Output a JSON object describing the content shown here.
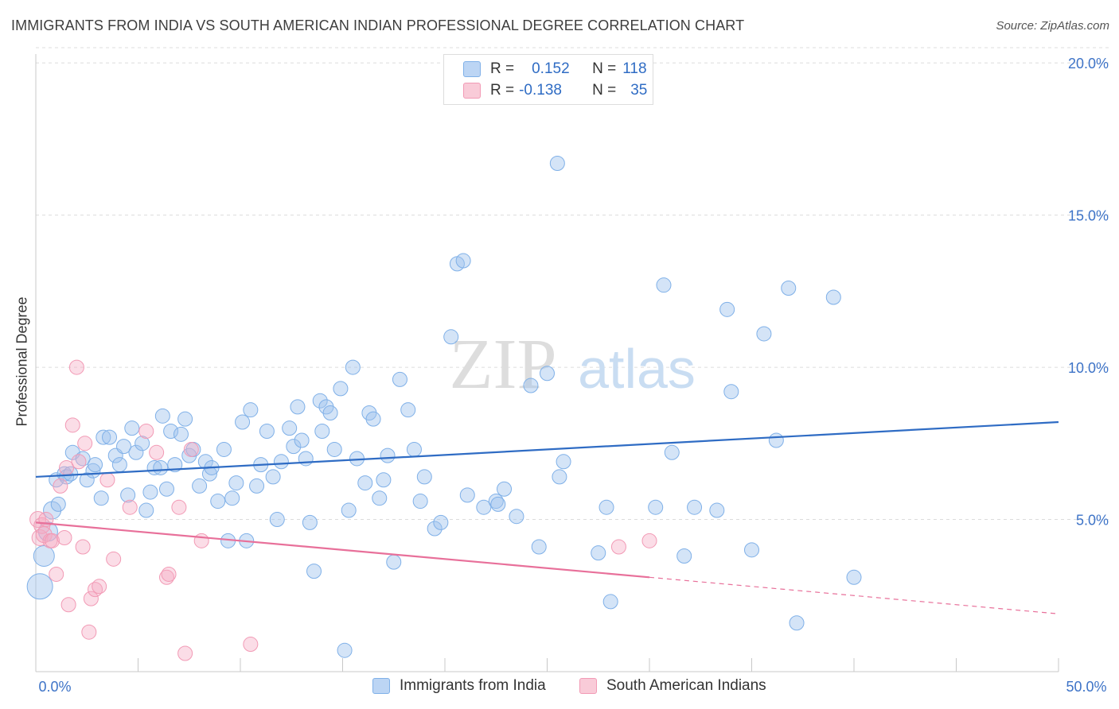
{
  "title": "IMMIGRANTS FROM INDIA VS SOUTH AMERICAN INDIAN PROFESSIONAL DEGREE CORRELATION CHART",
  "source": "Source: ZipAtlas.com",
  "watermark": {
    "zip": "ZIP",
    "atlas": "atlas"
  },
  "legend": {
    "rows": [
      {
        "r_label": "R =",
        "r_value": "0.152",
        "n_label": "N =",
        "n_value": "118",
        "color": "#a9c8f0"
      },
      {
        "r_label": "R =",
        "r_value": "-0.138",
        "n_label": "N =",
        "n_value": "35",
        "color": "#f7b6c8"
      }
    ]
  },
  "bottom_legend": [
    "Immigrants from India",
    "South American Indians"
  ],
  "chart_data": {
    "type": "scatter",
    "xlabel": "",
    "ylabel": "Professional Degree",
    "xlim": [
      0,
      50
    ],
    "ylim": [
      0,
      20.5
    ],
    "x_tick_labels": [
      {
        "x": 0,
        "label": "0.0%"
      },
      {
        "x": 50,
        "label": "50.0%"
      }
    ],
    "y_tick_labels": [
      {
        "y": 5,
        "label": "5.0%"
      },
      {
        "y": 10,
        "label": "10.0%"
      },
      {
        "y": 15,
        "label": "15.0%"
      },
      {
        "y": 20,
        "label": "20.0%"
      }
    ],
    "grid": true,
    "legend_position": "top-center",
    "series": [
      {
        "name": "Immigrants from India",
        "color": "#7fb0e8",
        "line_color": "#2f6cc4",
        "trend": {
          "x": [
            0,
            50
          ],
          "y": [
            6.4,
            8.2
          ]
        },
        "points": [
          [
            0.2,
            2.8
          ],
          [
            0.4,
            3.8
          ],
          [
            0.6,
            4.6
          ],
          [
            0.8,
            5.3
          ],
          [
            1.0,
            6.3
          ],
          [
            1.1,
            5.5
          ],
          [
            1.4,
            6.5
          ],
          [
            1.5,
            6.4
          ],
          [
            1.7,
            6.5
          ],
          [
            1.8,
            7.2
          ],
          [
            2.3,
            7.0
          ],
          [
            2.5,
            6.3
          ],
          [
            2.8,
            6.6
          ],
          [
            2.9,
            6.8
          ],
          [
            3.2,
            5.7
          ],
          [
            3.3,
            7.7
          ],
          [
            3.6,
            7.7
          ],
          [
            3.9,
            7.1
          ],
          [
            4.1,
            6.8
          ],
          [
            4.3,
            7.4
          ],
          [
            4.5,
            5.8
          ],
          [
            4.7,
            8.0
          ],
          [
            4.9,
            7.2
          ],
          [
            5.2,
            7.5
          ],
          [
            5.4,
            5.3
          ],
          [
            5.6,
            5.9
          ],
          [
            5.8,
            6.7
          ],
          [
            6.1,
            6.7
          ],
          [
            6.2,
            8.4
          ],
          [
            6.4,
            6.0
          ],
          [
            6.6,
            7.9
          ],
          [
            6.8,
            6.8
          ],
          [
            7.1,
            7.8
          ],
          [
            7.3,
            8.3
          ],
          [
            7.5,
            7.1
          ],
          [
            7.7,
            7.3
          ],
          [
            8.0,
            6.1
          ],
          [
            8.3,
            6.9
          ],
          [
            8.5,
            6.5
          ],
          [
            8.6,
            6.7
          ],
          [
            8.9,
            5.6
          ],
          [
            9.2,
            7.3
          ],
          [
            9.4,
            4.3
          ],
          [
            9.6,
            5.7
          ],
          [
            9.8,
            6.2
          ],
          [
            10.1,
            8.2
          ],
          [
            10.3,
            4.3
          ],
          [
            10.5,
            8.6
          ],
          [
            10.8,
            6.1
          ],
          [
            11.0,
            6.8
          ],
          [
            11.3,
            7.9
          ],
          [
            11.6,
            6.4
          ],
          [
            11.8,
            5.0
          ],
          [
            12.0,
            6.9
          ],
          [
            12.4,
            8.0
          ],
          [
            12.6,
            7.4
          ],
          [
            12.8,
            8.7
          ],
          [
            13.0,
            7.6
          ],
          [
            13.2,
            7.0
          ],
          [
            13.4,
            4.9
          ],
          [
            13.6,
            3.3
          ],
          [
            13.9,
            8.9
          ],
          [
            14.0,
            7.9
          ],
          [
            14.2,
            8.7
          ],
          [
            14.4,
            8.5
          ],
          [
            14.6,
            7.3
          ],
          [
            14.9,
            9.3
          ],
          [
            15.1,
            0.7
          ],
          [
            15.3,
            5.3
          ],
          [
            15.5,
            10.0
          ],
          [
            15.7,
            7.0
          ],
          [
            16.1,
            6.2
          ],
          [
            16.3,
            8.5
          ],
          [
            16.5,
            8.3
          ],
          [
            16.8,
            5.7
          ],
          [
            17.0,
            6.3
          ],
          [
            17.2,
            7.1
          ],
          [
            17.5,
            3.6
          ],
          [
            17.8,
            9.6
          ],
          [
            18.2,
            8.6
          ],
          [
            18.5,
            7.3
          ],
          [
            18.8,
            5.6
          ],
          [
            19.0,
            6.4
          ],
          [
            19.5,
            4.7
          ],
          [
            19.8,
            4.9
          ],
          [
            20.3,
            11.0
          ],
          [
            20.6,
            13.4
          ],
          [
            20.9,
            13.5
          ],
          [
            21.1,
            5.8
          ],
          [
            21.9,
            5.4
          ],
          [
            22.5,
            5.6
          ],
          [
            22.6,
            5.5
          ],
          [
            22.9,
            6.0
          ],
          [
            23.5,
            5.1
          ],
          [
            24.2,
            9.4
          ],
          [
            24.6,
            4.1
          ],
          [
            25.0,
            9.8
          ],
          [
            25.5,
            16.7
          ],
          [
            25.6,
            6.4
          ],
          [
            25.8,
            6.9
          ],
          [
            27.5,
            3.9
          ],
          [
            27.9,
            5.4
          ],
          [
            28.1,
            2.3
          ],
          [
            30.3,
            5.4
          ],
          [
            30.7,
            12.7
          ],
          [
            31.1,
            7.2
          ],
          [
            31.7,
            3.8
          ],
          [
            32.2,
            5.4
          ],
          [
            33.3,
            5.3
          ],
          [
            33.8,
            11.9
          ],
          [
            34.0,
            9.2
          ],
          [
            35.0,
            4.0
          ],
          [
            35.6,
            11.1
          ],
          [
            36.2,
            7.6
          ],
          [
            36.8,
            12.6
          ],
          [
            37.2,
            1.6
          ],
          [
            39.0,
            12.3
          ],
          [
            40.0,
            3.1
          ]
        ]
      },
      {
        "name": "South American Indians",
        "color": "#f29ab5",
        "line_color": "#e8709a",
        "trend": {
          "x": [
            0,
            30
          ],
          "y": [
            4.9,
            3.1
          ]
        },
        "trend_dashed": {
          "x": [
            30,
            50
          ],
          "y": [
            3.1,
            1.9
          ]
        },
        "points": [
          [
            0.1,
            5.0
          ],
          [
            0.2,
            4.4
          ],
          [
            0.3,
            4.8
          ],
          [
            0.4,
            4.5
          ],
          [
            0.5,
            5.0
          ],
          [
            0.7,
            4.3
          ],
          [
            0.8,
            4.3
          ],
          [
            1.0,
            3.2
          ],
          [
            1.2,
            6.1
          ],
          [
            1.4,
            4.4
          ],
          [
            1.5,
            6.7
          ],
          [
            1.6,
            2.2
          ],
          [
            1.8,
            8.1
          ],
          [
            2.0,
            10.0
          ],
          [
            2.1,
            6.9
          ],
          [
            2.3,
            4.1
          ],
          [
            2.4,
            7.5
          ],
          [
            2.6,
            1.3
          ],
          [
            2.7,
            2.4
          ],
          [
            2.9,
            2.7
          ],
          [
            3.1,
            2.8
          ],
          [
            3.5,
            6.3
          ],
          [
            3.8,
            3.7
          ],
          [
            4.6,
            5.4
          ],
          [
            5.4,
            7.9
          ],
          [
            5.9,
            7.2
          ],
          [
            6.4,
            3.1
          ],
          [
            6.5,
            3.2
          ],
          [
            7.0,
            5.4
          ],
          [
            7.3,
            0.6
          ],
          [
            7.6,
            7.3
          ],
          [
            8.1,
            4.3
          ],
          [
            10.5,
            0.9
          ],
          [
            28.5,
            4.1
          ],
          [
            30.0,
            4.3
          ]
        ]
      }
    ]
  }
}
